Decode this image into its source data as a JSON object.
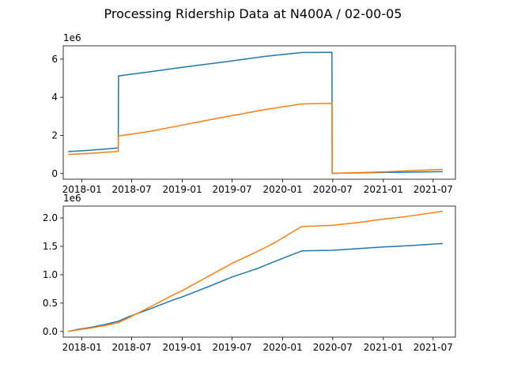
{
  "figure": {
    "title": "Processing Ridership Data at N400A / 02-00-05"
  },
  "colors": {
    "series_1": "#1f77b4",
    "series_2": "#ff7f0e"
  },
  "chart_data": [
    {
      "type": "line",
      "title": "",
      "xlabel": "",
      "ylabel": "",
      "x_axis": "date",
      "xlim": [
        "2017-10-25",
        "2021-09-20"
      ],
      "ylim": [
        -300000,
        6700000
      ],
      "y_offset_label": "1e6",
      "x_ticks": [
        "2018-01",
        "2018-07",
        "2019-01",
        "2019-07",
        "2020-01",
        "2020-07",
        "2021-01",
        "2021-07"
      ],
      "x_tick_labels": [
        "2018-01",
        "2018-07",
        "2019-01",
        "2019-07",
        "2020-01",
        "2020-07",
        "2021-01",
        "2021-07"
      ],
      "y_ticks": [
        0,
        2000000,
        4000000,
        6000000
      ],
      "y_tick_labels": [
        "0",
        "2",
        "4",
        "6"
      ],
      "grid": false,
      "legend": "none",
      "series": [
        {
          "color": "#1f77b4",
          "x": [
            "2017-11-12",
            "2018-02-01",
            "2018-05-13",
            "2018-05-14",
            "2018-09-01",
            "2019-01-01",
            "2019-06-01",
            "2019-11-01",
            "2020-03-10",
            "2020-06-28",
            "2020-06-29",
            "2020-07-05",
            "2021-01-01",
            "2021-08-05"
          ],
          "y": [
            1150000,
            1220000,
            1340000,
            5120000,
            5330000,
            5570000,
            5850000,
            6150000,
            6350000,
            6360000,
            10000,
            12000,
            55000,
            100000
          ]
        },
        {
          "color": "#ff7f0e",
          "x": [
            "2017-11-12",
            "2018-02-01",
            "2018-05-13",
            "2018-05-14",
            "2018-09-01",
            "2019-01-01",
            "2019-06-01",
            "2019-11-01",
            "2020-03-10",
            "2020-06-28",
            "2020-06-29",
            "2020-07-05",
            "2021-01-01",
            "2021-08-05"
          ],
          "y": [
            1000000,
            1060000,
            1160000,
            1970000,
            2200000,
            2540000,
            2960000,
            3360000,
            3650000,
            3680000,
            -5000,
            10000,
            90000,
            220000
          ]
        }
      ]
    },
    {
      "type": "line",
      "title": "",
      "xlabel": "",
      "ylabel": "",
      "x_axis": "date",
      "xlim": [
        "2017-10-25",
        "2021-09-20"
      ],
      "ylim": [
        -100000,
        2210000
      ],
      "y_offset_label": "1e6",
      "x_ticks": [
        "2018-01",
        "2018-07",
        "2019-01",
        "2019-07",
        "2020-01",
        "2020-07",
        "2021-01",
        "2021-07"
      ],
      "x_tick_labels": [
        "2018-01",
        "2018-07",
        "2019-01",
        "2019-07",
        "2020-01",
        "2020-07",
        "2021-01",
        "2021-07"
      ],
      "y_ticks": [
        0,
        500000,
        1000000,
        1500000,
        2000000
      ],
      "y_tick_labels": [
        "0.0",
        "0.5",
        "1.0",
        "1.5",
        "2.0"
      ],
      "grid": false,
      "legend": "none",
      "series": [
        {
          "color": "#1f77b4",
          "x": [
            "2017-11-12",
            "2017-12-20",
            "2018-02-01",
            "2018-04-01",
            "2018-05-13",
            "2018-06-15",
            "2018-09-01",
            "2018-12-01",
            "2019-01-01",
            "2019-04-01",
            "2019-07-01",
            "2019-10-01",
            "2019-12-01",
            "2020-03-10",
            "2020-06-28",
            "2020-10-01",
            "2021-01-01",
            "2021-04-01",
            "2021-08-05"
          ],
          "y": [
            0,
            40000,
            70000,
            130000,
            180000,
            250000,
            390000,
            560000,
            610000,
            780000,
            960000,
            1110000,
            1230000,
            1420000,
            1430000,
            1460000,
            1490000,
            1510000,
            1550000
          ]
        },
        {
          "color": "#ff7f0e",
          "x": [
            "2017-11-12",
            "2017-12-20",
            "2018-02-01",
            "2018-04-01",
            "2018-05-13",
            "2018-06-15",
            "2018-09-01",
            "2018-12-01",
            "2019-01-01",
            "2019-04-01",
            "2019-07-01",
            "2019-10-01",
            "2019-12-01",
            "2020-03-10",
            "2020-06-28",
            "2020-10-01",
            "2021-01-01",
            "2021-04-01",
            "2021-08-05"
          ],
          "y": [
            0,
            30000,
            60000,
            110000,
            155000,
            230000,
            420000,
            650000,
            720000,
            960000,
            1200000,
            1410000,
            1560000,
            1850000,
            1870000,
            1920000,
            1980000,
            2030000,
            2120000
          ]
        }
      ]
    }
  ]
}
